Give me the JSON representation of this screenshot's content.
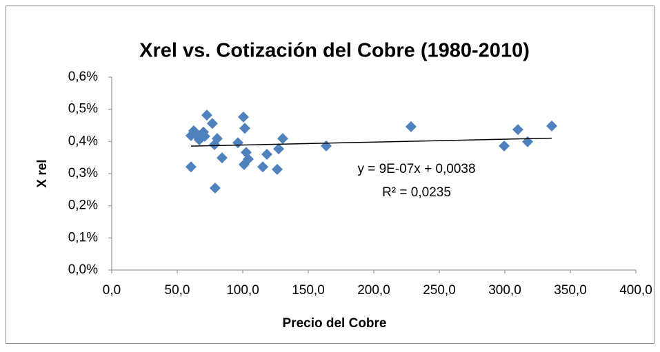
{
  "chart_data": {
    "type": "scatter",
    "title": "Xrel vs. Cotización del Cobre (1980-2010)",
    "x_label": "Precio del Cobre",
    "y_label": "X rel",
    "annotations": [
      "y = 9E-07x + 0,0038",
      "R² = 0,0235"
    ],
    "xlim": [
      0,
      400
    ],
    "xticks": [
      {
        "value": 0,
        "label": "0,0"
      },
      {
        "value": 50,
        "label": "50,0"
      },
      {
        "value": 100,
        "label": "100,0"
      },
      {
        "value": 150,
        "label": "150,0"
      },
      {
        "value": 200,
        "label": "200,0"
      },
      {
        "value": 250,
        "label": "250,0"
      },
      {
        "value": 300,
        "label": "300,0"
      },
      {
        "value": 350,
        "label": "350,0"
      },
      {
        "value": 400,
        "label": "400,0"
      }
    ],
    "ylim": [
      0,
      0.6
    ],
    "yticks": [
      {
        "value": 0,
        "label": "0,0%"
      },
      {
        "value": 0.1,
        "label": "0,1%"
      },
      {
        "value": 0.2,
        "label": "0,2%"
      },
      {
        "value": 0.3,
        "label": "0,3%"
      },
      {
        "value": 0.4,
        "label": "0,4%"
      },
      {
        "value": 0.5,
        "label": "0,5%"
      },
      {
        "value": 0.6,
        "label": "0,6%"
      }
    ],
    "grid": false,
    "color": "#4f81bd",
    "x": [
      60.5,
      62.6,
      60.5,
      65.3,
      66.8,
      70,
      71,
      72.6,
      76.8,
      78.4,
      80.5,
      78.9,
      84.2,
      96.3,
      100.5,
      101.6,
      102.6,
      104.2,
      101,
      115.3,
      118.4,
      126.3,
      127.4,
      130.5,
      163.7,
      228.4,
      299.5,
      310,
      317.4,
      335.8
    ],
    "values": [
      0.418,
      0.433,
      0.321,
      0.416,
      0.405,
      0.429,
      0.416,
      0.482,
      0.456,
      0.39,
      0.409,
      0.255,
      0.349,
      0.396,
      0.476,
      0.441,
      0.366,
      0.345,
      0.328,
      0.321,
      0.36,
      0.313,
      0.377,
      0.409,
      0.386,
      0.446,
      0.386,
      0.437,
      0.399,
      0.448
    ],
    "trendline": {
      "color": "#000000",
      "x": [
        60.5,
        335.8
      ],
      "values": [
        0.3854,
        0.4102
      ]
    }
  }
}
